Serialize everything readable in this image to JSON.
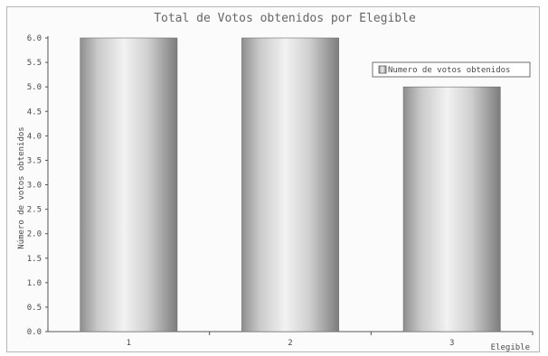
{
  "chart_data": {
    "type": "bar",
    "title": "Total de Votos obtenidos por Elegible",
    "xlabel": "Elegible",
    "ylabel": "Número de votos obtenidos",
    "categories": [
      "1",
      "2",
      "3"
    ],
    "series": [
      {
        "name": "Numero de votos obtenidos",
        "values": [
          6,
          6,
          5
        ]
      }
    ],
    "ylim": [
      0,
      6
    ],
    "yticks": [
      "0.0",
      "0.5",
      "1.0",
      "1.5",
      "2.0",
      "2.5",
      "3.0",
      "3.5",
      "4.0",
      "4.5",
      "5.0",
      "5.5",
      "6.0"
    ],
    "grid": false,
    "legend": "top-right",
    "bar_style": "3D cylinder, gray gradient"
  }
}
